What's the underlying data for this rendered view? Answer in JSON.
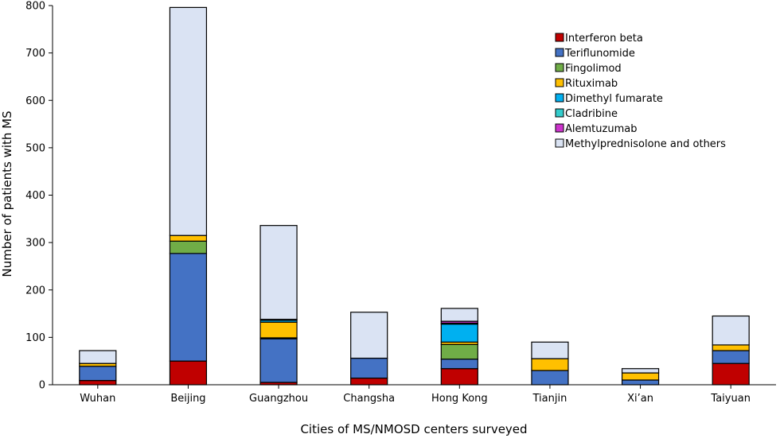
{
  "chart_data": {
    "type": "bar",
    "stacked": true,
    "xlabel": "Cities of MS/NMOSD centers surveyed",
    "ylabel": "Number of  patients with MS",
    "ylim": [
      0,
      800
    ],
    "yticks": [
      0,
      100,
      200,
      300,
      400,
      500,
      600,
      700,
      800
    ],
    "legend_position": "top-right",
    "categories": [
      "Wuhan",
      "Beijing",
      "Guangzhou",
      "Changsha",
      "Hong Kong",
      "Tianjin",
      "Xi’an",
      "Taiyuan"
    ],
    "series": [
      {
        "name": "Interferon beta",
        "color": "#c00000",
        "values": [
          9,
          50,
          5,
          14,
          34,
          0,
          0,
          45
        ]
      },
      {
        "name": "Teriflunomide",
        "color": "#4472c4",
        "values": [
          30,
          227,
          92,
          42,
          20,
          30,
          10,
          27
        ]
      },
      {
        "name": "Fingolimod",
        "color": "#70ad47",
        "values": [
          0,
          26,
          2,
          0,
          31,
          0,
          0,
          0
        ]
      },
      {
        "name": "Rituximab",
        "color": "#ffc000",
        "values": [
          6,
          12,
          33,
          0,
          5,
          25,
          15,
          12
        ]
      },
      {
        "name": "Dimethyl fumarate",
        "color": "#00b0f0",
        "values": [
          0,
          0,
          4,
          0,
          38,
          0,
          0,
          0
        ]
      },
      {
        "name": "Cladribine",
        "color": "#33cccc",
        "values": [
          0,
          0,
          2,
          0,
          2,
          0,
          0,
          0
        ]
      },
      {
        "name": "Alemtuzumab",
        "color": "#cc33cc",
        "values": [
          0,
          0,
          0,
          0,
          4,
          0,
          0,
          0
        ]
      },
      {
        "name": "Methylprednisolone and others",
        "color": "#dae3f3",
        "values": [
          27,
          481,
          198,
          97,
          27,
          35,
          9,
          61
        ]
      }
    ]
  }
}
